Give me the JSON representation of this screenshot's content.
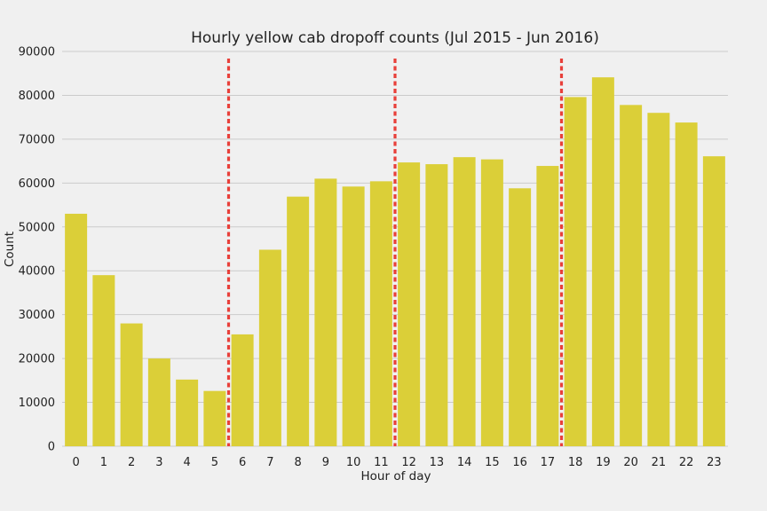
{
  "chart_data": {
    "type": "bar",
    "title": "Hourly yellow cab dropoff counts (Jul 2015 - Jun 2016)",
    "xlabel": "Hour of day",
    "ylabel": "Count",
    "categories": [
      "0",
      "1",
      "2",
      "3",
      "4",
      "5",
      "6",
      "7",
      "8",
      "9",
      "10",
      "11",
      "12",
      "13",
      "14",
      "15",
      "16",
      "17",
      "18",
      "19",
      "20",
      "21",
      "22",
      "23"
    ],
    "values": [
      53000,
      39000,
      28000,
      20000,
      15200,
      12600,
      25500,
      44800,
      56900,
      61000,
      59200,
      60400,
      64700,
      64300,
      65900,
      65400,
      58800,
      63900,
      79600,
      84100,
      77800,
      76000,
      73800,
      66100
    ],
    "ylim": [
      0,
      90000
    ],
    "yticks": [
      0,
      10000,
      20000,
      30000,
      40000,
      50000,
      60000,
      70000,
      80000,
      90000
    ],
    "grid": "horizontal",
    "bar_color": "#dbcf38",
    "reference_lines": {
      "style": "dashed",
      "color": "#e8403a",
      "x_positions": [
        5.5,
        11.5,
        17.5
      ]
    }
  }
}
